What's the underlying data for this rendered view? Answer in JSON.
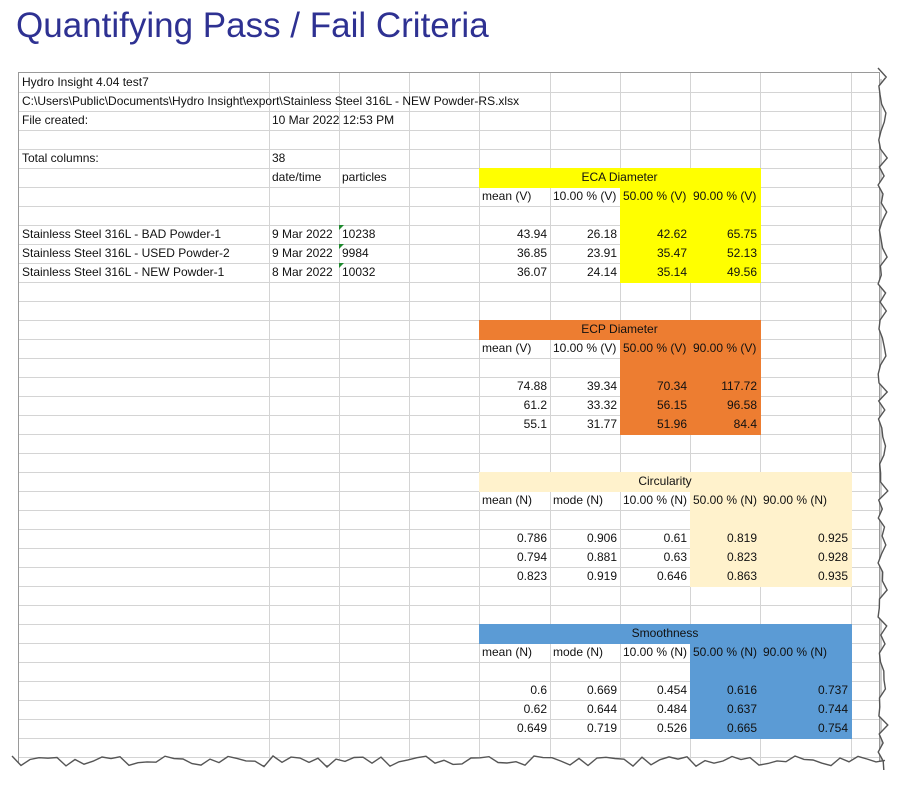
{
  "title": "Quantifying Pass / Fail Criteria",
  "colors": {
    "title": "#2e3192",
    "eca": "#ffff00",
    "ecp": "#ed7d31",
    "circ": "#fff2cc",
    "smooth": "#5b9bd5",
    "grid": "#d4d4d4"
  },
  "sheet": {
    "header": {
      "app": "Hydro Insight    4.04 test7",
      "path": "C:\\Users\\Public\\Documents\\Hydro Insight\\export\\Stainless Steel 316L - NEW Powder-RS.xlsx",
      "file_created_label": "File created:",
      "file_created_value": "10 Mar 2022  12:53 PM",
      "total_columns_label": "Total columns:",
      "total_columns_value": "38",
      "col_date": "date/time",
      "col_particles": "particles"
    },
    "samples": [
      {
        "name": "Stainless Steel 316L - BAD Powder-1",
        "date": "9 Mar 2022",
        "particles": "10238"
      },
      {
        "name": "Stainless Steel 316L - USED Powder-2",
        "date": "9 Mar 2022",
        "particles": "9984"
      },
      {
        "name": "Stainless Steel 316L - NEW Powder-1",
        "date": "8 Mar 2022",
        "particles": "10032"
      }
    ],
    "blocks": [
      {
        "key": "eca",
        "title": "ECA Diameter",
        "headers": [
          "mean (V)",
          "10.00 % (V)",
          "50.00 % (V)",
          "90.00 % (V)"
        ],
        "rows": [
          [
            "43.94",
            "26.18",
            "42.62",
            "65.75"
          ],
          [
            "36.85",
            "23.91",
            "35.47",
            "52.13"
          ],
          [
            "36.07",
            "24.14",
            "35.14",
            "49.56"
          ]
        ]
      },
      {
        "key": "ecp",
        "title": "ECP Diameter",
        "headers": [
          "mean (V)",
          "10.00 % (V)",
          "50.00 % (V)",
          "90.00 % (V)"
        ],
        "rows": [
          [
            "74.88",
            "39.34",
            "70.34",
            "117.72"
          ],
          [
            "61.2",
            "33.32",
            "56.15",
            "96.58"
          ],
          [
            "55.1",
            "31.77",
            "51.96",
            "84.4"
          ]
        ]
      },
      {
        "key": "circ",
        "title": "Circularity",
        "headers": [
          "mean (N)",
          "mode (N)",
          "10.00 % (N)",
          "50.00 % (N)",
          "90.00 % (N)"
        ],
        "rows": [
          [
            "0.786",
            "0.906",
            "0.61",
            "0.819",
            "0.925"
          ],
          [
            "0.794",
            "0.881",
            "0.63",
            "0.823",
            "0.928"
          ],
          [
            "0.823",
            "0.919",
            "0.646",
            "0.863",
            "0.935"
          ]
        ]
      },
      {
        "key": "smooth",
        "title": "Smoothness",
        "headers": [
          "mean (N)",
          "mode (N)",
          "10.00 % (N)",
          "50.00 % (N)",
          "90.00 % (N)"
        ],
        "rows": [
          [
            "0.6",
            "0.669",
            "0.454",
            "0.616",
            "0.737"
          ],
          [
            "0.62",
            "0.644",
            "0.484",
            "0.637",
            "0.744"
          ],
          [
            "0.649",
            "0.719",
            "0.526",
            "0.665",
            "0.754"
          ]
        ]
      }
    ]
  }
}
